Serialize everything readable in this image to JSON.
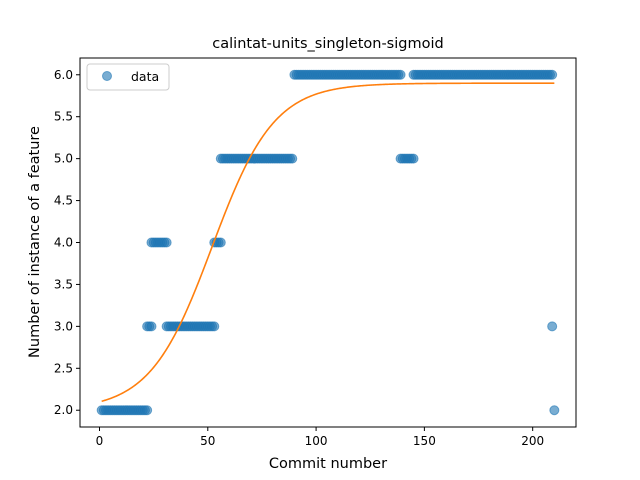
{
  "chart_data": {
    "type": "scatter",
    "title": "calintat-units_singleton-sigmoid",
    "xlabel": "Commit number",
    "ylabel": "Number of instance of a feature",
    "xlim": [
      -9,
      220
    ],
    "ylim": [
      1.8,
      6.2
    ],
    "xticks": [
      0,
      50,
      100,
      150,
      200
    ],
    "yticks": [
      2.0,
      2.5,
      3.0,
      3.5,
      4.0,
      4.5,
      5.0,
      5.5,
      6.0
    ],
    "xtick_labels": [
      "0",
      "50",
      "100",
      "150",
      "200"
    ],
    "ytick_labels": [
      "2.0",
      "2.5",
      "3.0",
      "3.5",
      "4.0",
      "4.5",
      "5.0",
      "5.5",
      "6.0"
    ],
    "legend": {
      "position": "top-left",
      "entries": [
        "data"
      ]
    },
    "grid": false,
    "series": [
      {
        "name": "data",
        "kind": "scatter",
        "color": "#1f77b4",
        "alpha": 0.6,
        "runs": [
          {
            "x_start": 1,
            "x_end": 22,
            "y": 2
          },
          {
            "x_start": 22,
            "x_end": 24,
            "y": 3
          },
          {
            "x_start": 24,
            "x_end": 31,
            "y": 4
          },
          {
            "x_start": 31,
            "x_end": 53,
            "y": 3
          },
          {
            "x_start": 53,
            "x_end": 56,
            "y": 4
          },
          {
            "x_start": 56,
            "x_end": 89,
            "y": 5
          },
          {
            "x_start": 90,
            "x_end": 139,
            "y": 6
          },
          {
            "x_start": 139,
            "x_end": 145,
            "y": 5
          },
          {
            "x_start": 145,
            "x_end": 209,
            "y": 6
          }
        ],
        "extra_points": [
          {
            "x": 209,
            "y": 3
          },
          {
            "x": 210,
            "y": 2
          }
        ]
      },
      {
        "kind": "line",
        "color": "#ff7f0e",
        "sigmoid_fit": {
          "lower": 2.0,
          "upper": 5.9,
          "midpoint": 52,
          "rate": 0.07,
          "x_range": [
            1,
            210
          ]
        }
      }
    ]
  }
}
